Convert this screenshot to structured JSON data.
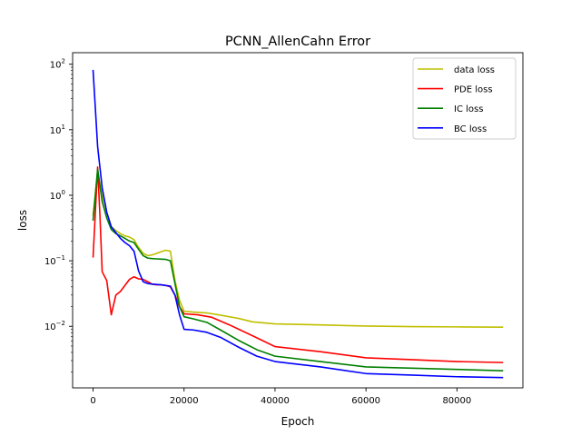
{
  "chart_data": {
    "type": "line",
    "title": "PCNN_AllenCahn Error",
    "xlabel": "Epoch",
    "ylabel": "loss",
    "xlim": [
      -4500,
      94500
    ],
    "ylim": [
      0.00115,
      150
    ],
    "yscale": "log",
    "grid": false,
    "legend_position": "top-right",
    "x_ticks": [
      0,
      20000,
      40000,
      60000,
      80000
    ],
    "x_tick_labels": [
      "0",
      "20000",
      "40000",
      "60000",
      "80000"
    ],
    "y_ticks": [
      0.01,
      0.1,
      1,
      10,
      100
    ],
    "y_tick_labels": [
      {
        "base": "10",
        "exp": "−2"
      },
      {
        "base": "10",
        "exp": "−1"
      },
      {
        "base": "10",
        "exp": "0"
      },
      {
        "base": "10",
        "exp": "1"
      },
      {
        "base": "10",
        "exp": "2"
      }
    ],
    "series": [
      {
        "name": "data loss",
        "color": "#bfbf00",
        "x": [
          0,
          1000,
          2000,
          3000,
          4000,
          5000,
          6000,
          7000,
          8000,
          9000,
          10000,
          11000,
          12000,
          13000,
          14000,
          15000,
          16000,
          17000,
          18000,
          19000,
          20000,
          22000,
          25000,
          28000,
          32000,
          35000,
          40000,
          50000,
          60000,
          70000,
          80000,
          90000
        ],
        "y": [
          0.5,
          2.3,
          1.0,
          0.55,
          0.33,
          0.29,
          0.26,
          0.24,
          0.23,
          0.21,
          0.16,
          0.13,
          0.12,
          0.123,
          0.13,
          0.138,
          0.145,
          0.14,
          0.05,
          0.025,
          0.017,
          0.0165,
          0.016,
          0.0148,
          0.0132,
          0.0117,
          0.0109,
          0.0105,
          0.0101,
          0.0099,
          0.0098,
          0.0097
        ]
      },
      {
        "name": "PDE loss",
        "color": "#ff0000",
        "x": [
          0,
          1000,
          1500,
          2000,
          3000,
          4000,
          5000,
          6000,
          7000,
          8000,
          9000,
          10000,
          11000,
          12000,
          13000,
          14000,
          15000,
          16000,
          17000,
          18000,
          19000,
          20000,
          23000,
          26000,
          30000,
          35000,
          40000,
          50000,
          60000,
          70000,
          80000,
          90000
        ],
        "y": [
          0.115,
          2.7,
          0.5,
          0.068,
          0.05,
          0.015,
          0.03,
          0.034,
          0.042,
          0.052,
          0.057,
          0.053,
          0.052,
          0.048,
          0.044,
          0.043,
          0.043,
          0.042,
          0.04,
          0.03,
          0.02,
          0.0155,
          0.015,
          0.0138,
          0.0105,
          0.0072,
          0.0049,
          0.0041,
          0.0033,
          0.0031,
          0.0029,
          0.0028
        ]
      },
      {
        "name": "IC loss",
        "color": "#008000",
        "x": [
          0,
          1000,
          2000,
          3000,
          4000,
          5000,
          6000,
          7000,
          8000,
          9000,
          10000,
          11000,
          12000,
          13000,
          14000,
          15000,
          16000,
          17000,
          18000,
          19000,
          20000,
          22000,
          25000,
          28000,
          32000,
          36000,
          40000,
          50000,
          60000,
          70000,
          80000,
          90000
        ],
        "y": [
          0.42,
          2.5,
          0.8,
          0.45,
          0.3,
          0.26,
          0.24,
          0.22,
          0.2,
          0.19,
          0.15,
          0.12,
          0.11,
          0.108,
          0.107,
          0.106,
          0.105,
          0.1,
          0.045,
          0.02,
          0.014,
          0.013,
          0.0115,
          0.0088,
          0.0061,
          0.0044,
          0.0035,
          0.0029,
          0.0024,
          0.0023,
          0.0022,
          0.0021
        ]
      },
      {
        "name": "BC loss",
        "color": "#0000ff",
        "x": [
          0,
          1000,
          2000,
          3000,
          4000,
          5000,
          6000,
          7000,
          8000,
          9000,
          10000,
          11000,
          12000,
          13000,
          14000,
          15000,
          16000,
          17000,
          18000,
          19000,
          20000,
          22000,
          25000,
          28000,
          32000,
          36000,
          40000,
          50000,
          60000,
          70000,
          80000,
          90000
        ],
        "y": [
          80,
          5.5,
          1.3,
          0.55,
          0.33,
          0.27,
          0.22,
          0.19,
          0.17,
          0.14,
          0.07,
          0.048,
          0.045,
          0.044,
          0.0435,
          0.043,
          0.042,
          0.041,
          0.03,
          0.015,
          0.009,
          0.0088,
          0.0081,
          0.0068,
          0.0048,
          0.0035,
          0.0029,
          0.0024,
          0.0019,
          0.0018,
          0.0017,
          0.00165
        ]
      }
    ]
  }
}
